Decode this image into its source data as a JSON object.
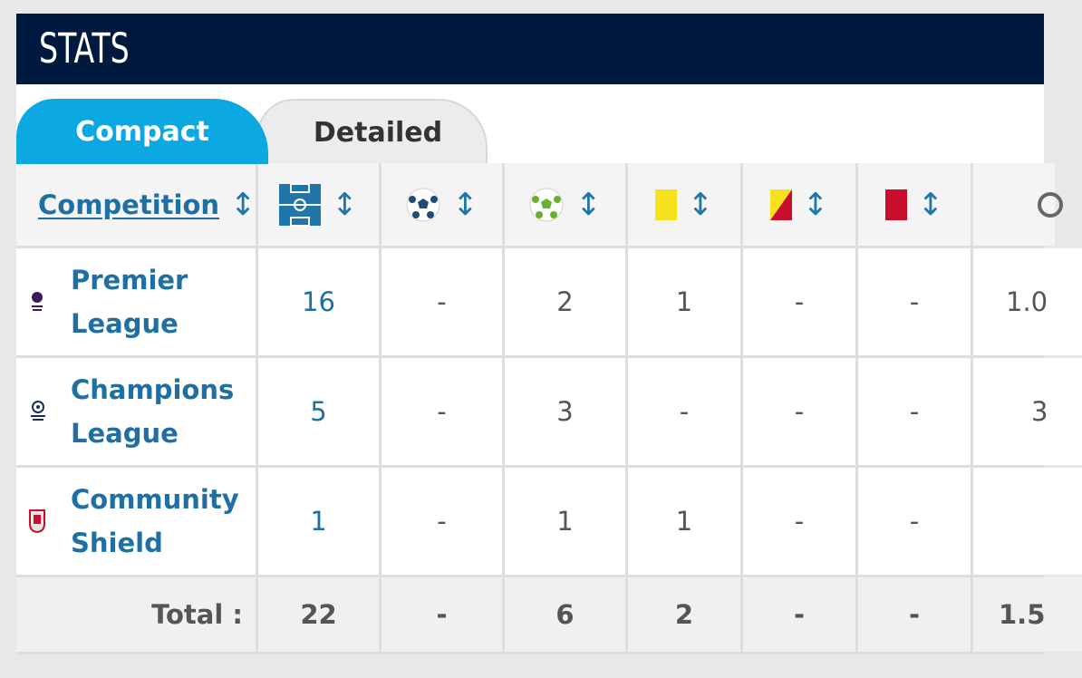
{
  "header": {
    "title": "STATS"
  },
  "tabs": {
    "compact": "Compact",
    "detailed": "Detailed"
  },
  "table": {
    "columns": [
      {
        "label": "Competition",
        "icon": "sort-icon"
      },
      {
        "icon": "pitch-icon",
        "meaning": "appearances"
      },
      {
        "icon": "ball-goal-icon",
        "meaning": "goals"
      },
      {
        "icon": "ball-assist-icon",
        "meaning": "assists"
      },
      {
        "icon": "yellow-card-icon",
        "meaning": "yellow cards"
      },
      {
        "icon": "second-yellow-card-icon",
        "meaning": "second yellow"
      },
      {
        "icon": "red-card-icon",
        "meaning": "red cards"
      },
      {
        "icon": "clock-icon",
        "meaning": "partially visible column"
      }
    ],
    "sort_symbol": "↕",
    "rows": [
      {
        "competition_line1": "Premier",
        "competition_line2": "League",
        "logo": "premier-league-logo-icon",
        "appearances": "16",
        "goals": "-",
        "assists": "2",
        "yellow": "1",
        "second_yellow": "-",
        "red": "-",
        "extra": "1.0"
      },
      {
        "competition_line1": "Champions",
        "competition_line2": "League",
        "logo": "champions-league-logo-icon",
        "appearances": "5",
        "goals": "-",
        "assists": "3",
        "yellow": "-",
        "second_yellow": "-",
        "red": "-",
        "extra": "3"
      },
      {
        "competition_line1": "Community",
        "competition_line2": "Shield",
        "logo": "community-shield-logo-icon",
        "appearances": "1",
        "goals": "-",
        "assists": "1",
        "yellow": "1",
        "second_yellow": "-",
        "red": "-",
        "extra": ""
      }
    ],
    "totals": {
      "label": "Total :",
      "appearances": "22",
      "goals": "-",
      "assists": "6",
      "yellow": "2",
      "second_yellow": "-",
      "red": "-",
      "extra": "1.5"
    }
  },
  "colors": {
    "header": "#001a3f",
    "tab_active": "#0ba8e2",
    "link": "#1f6fa3",
    "yellow_card": "#f7e01c",
    "red_card": "#c8102e"
  }
}
